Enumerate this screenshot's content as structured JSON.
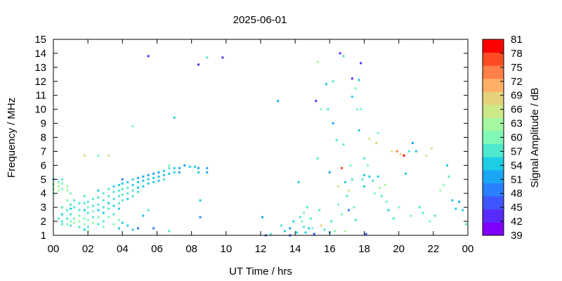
{
  "chart_data": {
    "type": "heatmap",
    "title": "2025-06-01",
    "xlabel": "UT Time / hrs",
    "ylabel": "Frequency / MHz",
    "colorbar_label": "Signal Amplitude / dB",
    "xlim": [
      0,
      24
    ],
    "ylim": [
      1,
      15
    ],
    "x_ticks": [
      "00",
      "02",
      "04",
      "06",
      "08",
      "10",
      "12",
      "14",
      "16",
      "18",
      "20",
      "22",
      "00"
    ],
    "y_ticks": [
      1,
      2,
      3,
      4,
      5,
      6,
      7,
      8,
      9,
      10,
      11,
      12,
      13,
      14,
      15
    ],
    "colorbar_range": [
      39,
      81
    ],
    "colorbar_ticks": [
      39,
      42,
      45,
      48,
      51,
      54,
      57,
      60,
      63,
      66,
      69,
      72,
      75,
      78,
      81
    ],
    "colorbar_colors": [
      "#7f00ff",
      "#5a2bff",
      "#3e56ff",
      "#2b80ff",
      "#1aa6f5",
      "#1ccde4",
      "#4ee8cf",
      "#80f8b8",
      "#a4f8a0",
      "#cde888",
      "#e6d27a",
      "#ffb066",
      "#ff7f48",
      "#ff4c24",
      "#ff0000"
    ],
    "grid": false,
    "points": [
      [
        0.0,
        5.0,
        55
      ],
      [
        0.0,
        4.6,
        60
      ],
      [
        0.0,
        4.3,
        62
      ],
      [
        0.0,
        4.0,
        60
      ],
      [
        0.0,
        4.7,
        62
      ],
      [
        0.3,
        4.2,
        62
      ],
      [
        0.3,
        4.5,
        63
      ],
      [
        0.3,
        4.8,
        60
      ],
      [
        0.3,
        2.2,
        58
      ],
      [
        0.5,
        4.7,
        60
      ],
      [
        0.5,
        4.3,
        61
      ],
      [
        0.5,
        5.0,
        58
      ],
      [
        0.5,
        3.0,
        58
      ],
      [
        0.5,
        2.5,
        55
      ],
      [
        0.5,
        2.0,
        57
      ],
      [
        0.5,
        1.8,
        58
      ],
      [
        0.8,
        4.5,
        63
      ],
      [
        0.8,
        4.2,
        62
      ],
      [
        0.8,
        3.5,
        60
      ],
      [
        0.8,
        2.8,
        57
      ],
      [
        0.8,
        2.2,
        58
      ],
      [
        0.8,
        1.8,
        60
      ],
      [
        1.0,
        4.0,
        60
      ],
      [
        1.0,
        3.2,
        58
      ],
      [
        1.0,
        2.9,
        55
      ],
      [
        1.0,
        2.5,
        57
      ],
      [
        1.0,
        2.0,
        60
      ],
      [
        1.0,
        1.7,
        58
      ],
      [
        1.2,
        3.5,
        58
      ],
      [
        1.2,
        3.0,
        57
      ],
      [
        1.2,
        2.2,
        60
      ],
      [
        1.2,
        1.9,
        62
      ],
      [
        1.5,
        3.3,
        57
      ],
      [
        1.5,
        2.8,
        58
      ],
      [
        1.5,
        2.4,
        60
      ],
      [
        1.5,
        2.0,
        62
      ],
      [
        1.5,
        1.6,
        58
      ],
      [
        1.8,
        3.8,
        57
      ],
      [
        1.8,
        3.3,
        58
      ],
      [
        1.8,
        2.8,
        55
      ],
      [
        1.8,
        2.2,
        60
      ],
      [
        1.8,
        1.8,
        62
      ],
      [
        1.8,
        1.4,
        55
      ],
      [
        1.8,
        6.7,
        68
      ],
      [
        2.0,
        3.4,
        57
      ],
      [
        2.0,
        3.0,
        60
      ],
      [
        2.0,
        2.6,
        58
      ],
      [
        2.0,
        2.1,
        60
      ],
      [
        2.0,
        1.6,
        58
      ],
      [
        2.0,
        1.3,
        62
      ],
      [
        2.3,
        3.6,
        57
      ],
      [
        2.3,
        3.1,
        58
      ],
      [
        2.3,
        2.7,
        60
      ],
      [
        2.3,
        2.3,
        57
      ],
      [
        2.3,
        1.9,
        62
      ],
      [
        2.6,
        4.2,
        55
      ],
      [
        2.6,
        3.7,
        57
      ],
      [
        2.6,
        3.2,
        58
      ],
      [
        2.6,
        2.8,
        55
      ],
      [
        2.6,
        2.3,
        60
      ],
      [
        2.6,
        1.8,
        58
      ],
      [
        2.6,
        6.7,
        60
      ],
      [
        2.9,
        4.0,
        57
      ],
      [
        2.9,
        3.5,
        58
      ],
      [
        2.9,
        3.0,
        57
      ],
      [
        2.9,
        2.6,
        55
      ],
      [
        2.9,
        2.0,
        58
      ],
      [
        2.9,
        1.6,
        60
      ],
      [
        3.2,
        4.3,
        57
      ],
      [
        3.2,
        3.8,
        58
      ],
      [
        3.2,
        3.3,
        55
      ],
      [
        3.2,
        2.9,
        57
      ],
      [
        3.2,
        2.3,
        60
      ],
      [
        3.2,
        6.7,
        65
      ],
      [
        3.5,
        4.5,
        55
      ],
      [
        3.5,
        4.1,
        57
      ],
      [
        3.5,
        3.6,
        58
      ],
      [
        3.5,
        3.1,
        55
      ],
      [
        3.5,
        2.5,
        57
      ],
      [
        3.5,
        1.8,
        60
      ],
      [
        3.8,
        4.6,
        55
      ],
      [
        3.8,
        4.2,
        57
      ],
      [
        3.8,
        3.8,
        58
      ],
      [
        3.8,
        3.3,
        57
      ],
      [
        3.8,
        2.9,
        55
      ],
      [
        3.8,
        2.1,
        60
      ],
      [
        3.8,
        1.5,
        55
      ],
      [
        4.0,
        4.7,
        55
      ],
      [
        4.0,
        4.3,
        57
      ],
      [
        4.0,
        3.9,
        58
      ],
      [
        4.0,
        3.5,
        57
      ],
      [
        4.0,
        1.9,
        55
      ],
      [
        4.0,
        5.0,
        48
      ],
      [
        4.3,
        4.8,
        54
      ],
      [
        4.3,
        4.4,
        57
      ],
      [
        4.3,
        4.0,
        58
      ],
      [
        4.3,
        3.6,
        55
      ],
      [
        4.3,
        1.7,
        55
      ],
      [
        4.6,
        5.0,
        54
      ],
      [
        4.6,
        4.6,
        55
      ],
      [
        4.6,
        4.2,
        57
      ],
      [
        4.6,
        3.8,
        58
      ],
      [
        4.6,
        1.4,
        55
      ],
      [
        4.6,
        8.8,
        60
      ],
      [
        4.9,
        5.1,
        52
      ],
      [
        4.9,
        4.8,
        54
      ],
      [
        4.9,
        4.4,
        55
      ],
      [
        4.9,
        4.1,
        57
      ],
      [
        4.9,
        1.5,
        48
      ],
      [
        5.2,
        5.2,
        52
      ],
      [
        5.2,
        4.9,
        54
      ],
      [
        5.2,
        4.5,
        55
      ],
      [
        5.2,
        2.4,
        55
      ],
      [
        5.5,
        5.3,
        52
      ],
      [
        5.5,
        5.0,
        54
      ],
      [
        5.5,
        4.7,
        55
      ],
      [
        5.5,
        2.8,
        58
      ],
      [
        5.5,
        13.8,
        42
      ],
      [
        5.8,
        5.4,
        52
      ],
      [
        5.8,
        5.1,
        54
      ],
      [
        5.8,
        4.8,
        55
      ],
      [
        5.8,
        1.5,
        48
      ],
      [
        6.1,
        5.5,
        52
      ],
      [
        6.1,
        5.2,
        54
      ],
      [
        6.1,
        4.9,
        55
      ],
      [
        6.4,
        5.6,
        54
      ],
      [
        6.4,
        5.3,
        55
      ],
      [
        6.4,
        5.0,
        57
      ],
      [
        6.7,
        5.8,
        58
      ],
      [
        6.7,
        5.4,
        54
      ],
      [
        6.7,
        6.0,
        60
      ],
      [
        6.7,
        1.3,
        57
      ],
      [
        7.0,
        5.8,
        55
      ],
      [
        7.0,
        5.5,
        54
      ],
      [
        7.0,
        9.4,
        55
      ],
      [
        7.3,
        5.8,
        52
      ],
      [
        7.3,
        5.5,
        52
      ],
      [
        7.6,
        6.0,
        52
      ],
      [
        7.9,
        5.9,
        54
      ],
      [
        8.2,
        5.9,
        55
      ],
      [
        8.4,
        5.8,
        52
      ],
      [
        8.4,
        5.5,
        54
      ],
      [
        8.4,
        13.2,
        42
      ],
      [
        8.5,
        3.5,
        55
      ],
      [
        8.5,
        2.3,
        50
      ],
      [
        8.9,
        5.8,
        51
      ],
      [
        8.9,
        5.5,
        52
      ],
      [
        8.9,
        13.7,
        57
      ],
      [
        9.8,
        13.7,
        42
      ],
      [
        12.1,
        2.3,
        52
      ],
      [
        12.3,
        1.0,
        45
      ],
      [
        12.6,
        1.1,
        57
      ],
      [
        13.0,
        10.6,
        51
      ],
      [
        13.2,
        1.7,
        57
      ],
      [
        13.4,
        1.3,
        55
      ],
      [
        13.7,
        1.5,
        52
      ],
      [
        13.7,
        1.0,
        45
      ],
      [
        13.9,
        2.0,
        55
      ],
      [
        14.1,
        1.2,
        55
      ],
      [
        14.2,
        4.8,
        55
      ],
      [
        14.3,
        2.3,
        57
      ],
      [
        14.4,
        2.0,
        60
      ],
      [
        14.5,
        2.6,
        60
      ],
      [
        14.5,
        1.6,
        57
      ],
      [
        14.6,
        1.2,
        55
      ],
      [
        14.7,
        3.0,
        58
      ],
      [
        14.8,
        1.5,
        55
      ],
      [
        14.9,
        2.2,
        57
      ],
      [
        15.0,
        1.5,
        60
      ],
      [
        15.1,
        1.1,
        45
      ],
      [
        15.2,
        10.6,
        42
      ],
      [
        15.3,
        13.4,
        63
      ],
      [
        15.3,
        6.5,
        57
      ],
      [
        15.4,
        2.8,
        57
      ],
      [
        15.5,
        1.7,
        69
      ],
      [
        15.5,
        10.0,
        60
      ],
      [
        15.7,
        1.4,
        57
      ],
      [
        15.8,
        11.8,
        55
      ],
      [
        15.9,
        10.0,
        57
      ],
      [
        16.0,
        5.5,
        52
      ],
      [
        16.0,
        1.2,
        55
      ],
      [
        16.1,
        2.0,
        57
      ],
      [
        16.2,
        12.0,
        57
      ],
      [
        16.2,
        9.0,
        52
      ],
      [
        16.3,
        1.3,
        60
      ],
      [
        16.4,
        7.8,
        57
      ],
      [
        16.5,
        4.5,
        66
      ],
      [
        16.5,
        3.2,
        60
      ],
      [
        16.6,
        14.0,
        42
      ],
      [
        16.7,
        5.8,
        78
      ],
      [
        16.7,
        2.5,
        60
      ],
      [
        16.8,
        13.8,
        57
      ],
      [
        16.8,
        7.5,
        57
      ],
      [
        16.9,
        4.8,
        54
      ],
      [
        16.9,
        1.3,
        62
      ],
      [
        17.0,
        3.8,
        57
      ],
      [
        17.1,
        2.8,
        48
      ],
      [
        17.1,
        4.2,
        66
      ],
      [
        17.2,
        6.0,
        60
      ],
      [
        17.3,
        12.2,
        42
      ],
      [
        17.3,
        10.9,
        54
      ],
      [
        17.3,
        5.0,
        57
      ],
      [
        17.4,
        3.0,
        60
      ],
      [
        17.5,
        11.5,
        60
      ],
      [
        17.5,
        2.1,
        58
      ],
      [
        17.6,
        10.0,
        60
      ],
      [
        17.7,
        12.1,
        54
      ],
      [
        17.7,
        8.5,
        54
      ],
      [
        17.8,
        10.0,
        60
      ],
      [
        17.8,
        13.3,
        42
      ],
      [
        17.9,
        5.0,
        57
      ],
      [
        18.0,
        6.5,
        57
      ],
      [
        18.0,
        5.3,
        55
      ],
      [
        18.0,
        4.5,
        55
      ],
      [
        18.1,
        1.1,
        45
      ],
      [
        18.2,
        6.0,
        60
      ],
      [
        18.3,
        7.9,
        66
      ],
      [
        18.3,
        5.2,
        55
      ],
      [
        18.5,
        4.9,
        57
      ],
      [
        18.6,
        4.0,
        60
      ],
      [
        18.7,
        7.6,
        69
      ],
      [
        18.8,
        8.3,
        60
      ],
      [
        18.8,
        5.2,
        54
      ],
      [
        18.9,
        4.4,
        63
      ],
      [
        19.0,
        3.8,
        57
      ],
      [
        19.2,
        4.6,
        62
      ],
      [
        19.3,
        3.4,
        60
      ],
      [
        19.4,
        2.8,
        55
      ],
      [
        19.6,
        7.0,
        66
      ],
      [
        19.7,
        2.2,
        57
      ],
      [
        19.9,
        7.0,
        75
      ],
      [
        20.0,
        3.0,
        60
      ],
      [
        20.1,
        6.8,
        69
      ],
      [
        20.3,
        6.7,
        81
      ],
      [
        20.4,
        5.4,
        55
      ],
      [
        20.6,
        7.0,
        57
      ],
      [
        20.7,
        2.4,
        60
      ],
      [
        20.8,
        7.6,
        52
      ],
      [
        21.0,
        7.0,
        55
      ],
      [
        21.2,
        3.0,
        58
      ],
      [
        21.4,
        2.6,
        57
      ],
      [
        21.6,
        6.7,
        66
      ],
      [
        21.8,
        2.0,
        60
      ],
      [
        21.9,
        7.2,
        66
      ],
      [
        22.1,
        2.4,
        58
      ],
      [
        22.4,
        4.2,
        62
      ],
      [
        22.6,
        4.6,
        60
      ],
      [
        22.8,
        6.0,
        55
      ],
      [
        22.9,
        5.2,
        57
      ],
      [
        23.1,
        3.5,
        55
      ],
      [
        23.3,
        2.9,
        54
      ],
      [
        23.5,
        3.4,
        52
      ],
      [
        23.7,
        2.8,
        55
      ],
      [
        23.9,
        1.8,
        57
      ]
    ]
  }
}
